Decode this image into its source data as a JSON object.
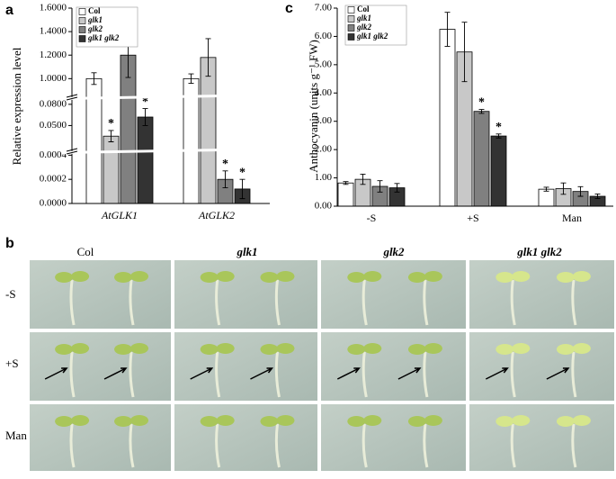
{
  "chart_data": [
    {
      "type": "bar",
      "panel_label": "a",
      "y_label": "Relative expression level",
      "categories": [
        "AtGLK1",
        "AtGLK2"
      ],
      "series": [
        {
          "name": "Col",
          "color": "#ffffff",
          "values": [
            1.0,
            1.0
          ],
          "errors": [
            0.05,
            0.04
          ]
        },
        {
          "name": "glk1",
          "color": "#c8c8c8",
          "values": [
            0.035,
            1.18
          ],
          "errors": [
            0.008,
            0.16
          ]
        },
        {
          "name": "glk2",
          "color": "#808080",
          "values": [
            1.2,
            0.0002
          ],
          "errors": [
            0.19,
            7e-05
          ]
        },
        {
          "name": "glk1 glk2",
          "color": "#333333",
          "values": [
            0.062,
            0.00012
          ],
          "errors": [
            0.012,
            8e-05
          ]
        }
      ],
      "y_segments": [
        {
          "ylim": [
            0,
            0.00044
          ],
          "yticks": [
            {
              "value": 0,
              "label": "0.0000"
            },
            {
              "value": 0.0002,
              "label": "0.0002"
            },
            {
              "value": 0.0004,
              "label": "0.0004"
            }
          ]
        },
        {
          "ylim": [
            0.02,
            0.09
          ],
          "yticks": [
            {
              "value": 0.05,
              "label": "0.0500"
            },
            {
              "value": 0.08,
              "label": "0.0800"
            }
          ]
        },
        {
          "ylim": [
            0.88,
            1.6
          ],
          "yticks": [
            {
              "value": 1.0,
              "label": "1.0000"
            },
            {
              "value": 1.2,
              "label": "1.2000"
            },
            {
              "value": 1.4,
              "label": "1.4000"
            },
            {
              "value": 1.6,
              "label": "1.6000"
            }
          ]
        }
      ],
      "annotations": [
        {
          "text": "*",
          "series": 1,
          "category": 0
        },
        {
          "text": "*",
          "series": 3,
          "category": 0
        },
        {
          "text": "*",
          "series": 2,
          "category": 1
        },
        {
          "text": "*",
          "series": 3,
          "category": 1
        }
      ]
    },
    {
      "type": "bar",
      "panel_label": "c",
      "y_label": "Anthocyanin (units g⁻¹ FW)",
      "categories": [
        "-S",
        "+S",
        "Man"
      ],
      "series": [
        {
          "name": "Col",
          "color": "#ffffff",
          "values": [
            0.82,
            6.25,
            0.6
          ],
          "errors": [
            0.05,
            0.6,
            0.07
          ]
        },
        {
          "name": "glk1",
          "color": "#c8c8c8",
          "values": [
            0.95,
            5.45,
            0.62
          ],
          "errors": [
            0.18,
            1.05,
            0.2
          ]
        },
        {
          "name": "glk2",
          "color": "#808080",
          "values": [
            0.7,
            3.35,
            0.52
          ],
          "errors": [
            0.2,
            0.07,
            0.17
          ]
        },
        {
          "name": "glk1 glk2",
          "color": "#333333",
          "values": [
            0.65,
            2.48,
            0.35
          ],
          "errors": [
            0.15,
            0.07,
            0.08
          ]
        }
      ],
      "ylim": [
        0,
        7
      ],
      "yticks": [
        {
          "value": 0,
          "label": "0.00"
        },
        {
          "value": 1,
          "label": "1.00"
        },
        {
          "value": 2,
          "label": "2.00"
        },
        {
          "value": 3,
          "label": "3.00"
        },
        {
          "value": 4,
          "label": "4.00"
        },
        {
          "value": 5,
          "label": "5.00"
        },
        {
          "value": 6,
          "label": "6.00"
        },
        {
          "value": 7,
          "label": "7.00"
        }
      ],
      "annotations": [
        {
          "text": "*",
          "series": 2,
          "category": 1
        },
        {
          "text": "*",
          "series": 3,
          "category": 1
        }
      ]
    }
  ],
  "photo_panel": {
    "panel_label": "b",
    "columns": [
      "Col",
      "glk1",
      "glk2",
      "glk1 glk2"
    ],
    "rows": [
      "-S",
      "+S",
      "Man"
    ]
  }
}
